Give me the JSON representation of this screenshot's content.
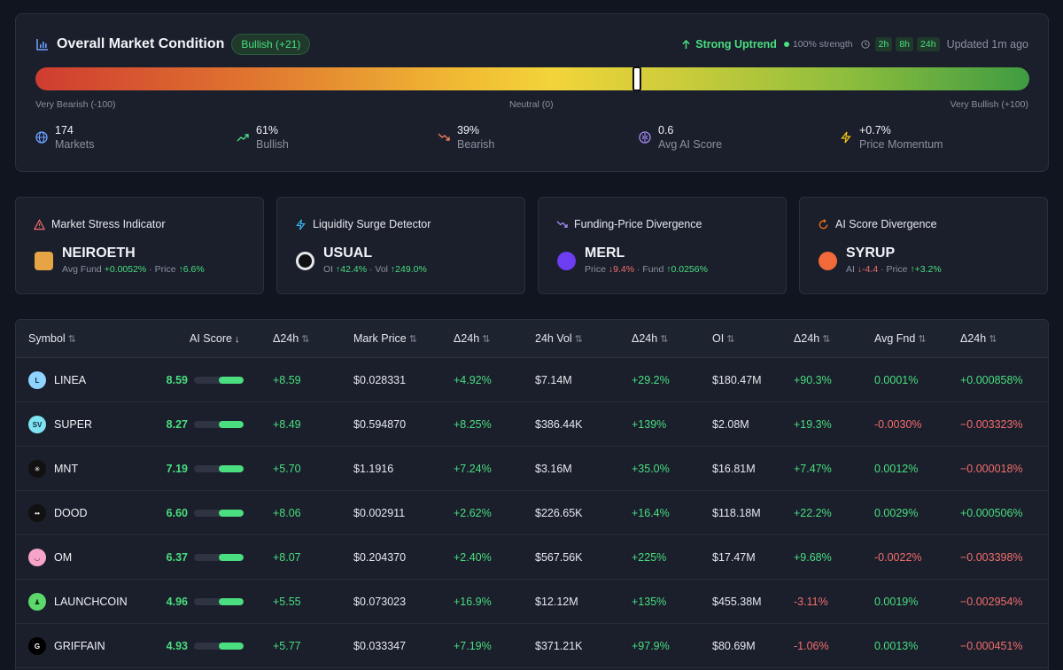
{
  "market": {
    "title": "Overall Market Condition",
    "badge": "Bullish (+21)",
    "trend": "Strong Uptrend",
    "strength": "100% strength",
    "timeframes": [
      "2h",
      "8h",
      "24h"
    ],
    "updated": "Updated 1m ago",
    "gauge_value": 21,
    "gauge_range": [
      -100,
      100
    ],
    "scale_labels": {
      "left": "Very Bearish (-100)",
      "center": "Neutral (0)",
      "right": "Very Bullish (+100)"
    },
    "stats": [
      {
        "value": "174",
        "label": "Markets",
        "icon": "globe-icon",
        "color": "#6ea0ff"
      },
      {
        "value": "61%",
        "label": "Bullish",
        "icon": "trending-up-icon",
        "color": "#4ade80"
      },
      {
        "value": "39%",
        "label": "Bearish",
        "icon": "trending-down-icon",
        "color": "#f07a5a"
      },
      {
        "value": "0.6",
        "label": "Avg AI Score",
        "icon": "brain-icon",
        "color": "#a78bfa"
      },
      {
        "value": "+0.7%",
        "label": "Price Momentum",
        "icon": "bolt-icon",
        "color": "#facc15"
      }
    ]
  },
  "cards": [
    {
      "title": "Market Stress Indicator",
      "icon": "warning-icon",
      "symbol": "NEIROETH",
      "d1_label": "Avg Fund",
      "d1_arrow": "",
      "d1_value": "+0.0052%",
      "d1_color": "green",
      "d2_label": "Price",
      "d2_arrow": "↑",
      "d2_value": "6.6%",
      "d2_color": "green"
    },
    {
      "title": "Liquidity Surge Detector",
      "icon": "bolt-icon",
      "symbol": "USUAL",
      "d1_label": "OI",
      "d1_arrow": "↑",
      "d1_value": "42.4%",
      "d1_color": "green",
      "d2_label": "Vol",
      "d2_arrow": "↑",
      "d2_value": "249.0%",
      "d2_color": "green"
    },
    {
      "title": "Funding-Price Divergence",
      "icon": "trend-down-icon",
      "symbol": "MERL",
      "d1_label": "Price",
      "d1_arrow": "↓",
      "d1_value": "9.4%",
      "d1_color": "red",
      "d2_label": "Fund",
      "d2_arrow": "↑",
      "d2_value": "0.0256%",
      "d2_color": "green"
    },
    {
      "title": "AI Score Divergence",
      "icon": "refresh-icon",
      "symbol": "SYRUP",
      "d1_label": "AI",
      "d1_arrow": "↓",
      "d1_value": "-4.4",
      "d1_color": "red",
      "d2_label": "Price",
      "d2_arrow": "↑",
      "d2_value": "+3.2%",
      "d2_color": "green"
    }
  ],
  "table": {
    "columns": [
      "Symbol",
      "AI Score",
      "Δ24h",
      "Mark Price",
      "Δ24h",
      "24h Vol",
      "Δ24h",
      "OI",
      "Δ24h",
      "Avg Fnd",
      "Δ24h"
    ],
    "sort_icons": [
      "⇅",
      "↓",
      "⇅",
      "⇅",
      "⇅",
      "⇅",
      "⇅",
      "⇅",
      "⇅",
      "⇅",
      "⇅"
    ],
    "rows": [
      {
        "symbol": "LINEA",
        "score": "8.59",
        "score_frac": 1.0,
        "score_d": "+8.59",
        "price": "$0.028331",
        "price_d": "+4.92%",
        "vol": "$7.14M",
        "vol_d": "+29.2%",
        "oi": "$180.47M",
        "oi_d": "+90.3%",
        "fnd": "0.0001%",
        "fnd_d": "+0.000858%"
      },
      {
        "symbol": "SUPER",
        "score": "8.27",
        "score_frac": 1.0,
        "score_d": "+8.49",
        "price": "$0.594870",
        "price_d": "+8.25%",
        "vol": "$386.44K",
        "vol_d": "+139%",
        "oi": "$2.08M",
        "oi_d": "+19.3%",
        "fnd": "-0.0030%",
        "fnd_d": "−0.003323%"
      },
      {
        "symbol": "MNT",
        "score": "7.19",
        "score_frac": 1.0,
        "score_d": "+5.70",
        "price": "$1.1916",
        "price_d": "+7.24%",
        "vol": "$3.16M",
        "vol_d": "+35.0%",
        "oi": "$16.81M",
        "oi_d": "+7.47%",
        "fnd": "0.0012%",
        "fnd_d": "−0.000018%"
      },
      {
        "symbol": "DOOD",
        "score": "6.60",
        "score_frac": 1.0,
        "score_d": "+8.06",
        "price": "$0.002911",
        "price_d": "+2.62%",
        "vol": "$226.65K",
        "vol_d": "+16.4%",
        "oi": "$118.18M",
        "oi_d": "+22.2%",
        "fnd": "0.0029%",
        "fnd_d": "+0.000506%"
      },
      {
        "symbol": "OM",
        "score": "6.37",
        "score_frac": 1.0,
        "score_d": "+8.07",
        "price": "$0.204370",
        "price_d": "+2.40%",
        "vol": "$567.56K",
        "vol_d": "+225%",
        "oi": "$17.47M",
        "oi_d": "+9.68%",
        "fnd": "-0.0022%",
        "fnd_d": "−0.003398%"
      },
      {
        "symbol": "LAUNCHCOIN",
        "score": "4.96",
        "score_frac": 1.0,
        "score_d": "+5.55",
        "price": "$0.073023",
        "price_d": "+16.9%",
        "vol": "$12.12M",
        "vol_d": "+135%",
        "oi": "$455.38M",
        "oi_d": "-3.11%",
        "fnd": "0.0019%",
        "fnd_d": "−0.002954%"
      },
      {
        "symbol": "GRIFFAIN",
        "score": "4.93",
        "score_frac": 1.0,
        "score_d": "+5.77",
        "price": "$0.033347",
        "price_d": "+7.19%",
        "vol": "$371.21K",
        "vol_d": "+97.9%",
        "oi": "$80.69M",
        "oi_d": "-1.06%",
        "fnd": "0.0013%",
        "fnd_d": "−0.000451%"
      }
    ]
  }
}
